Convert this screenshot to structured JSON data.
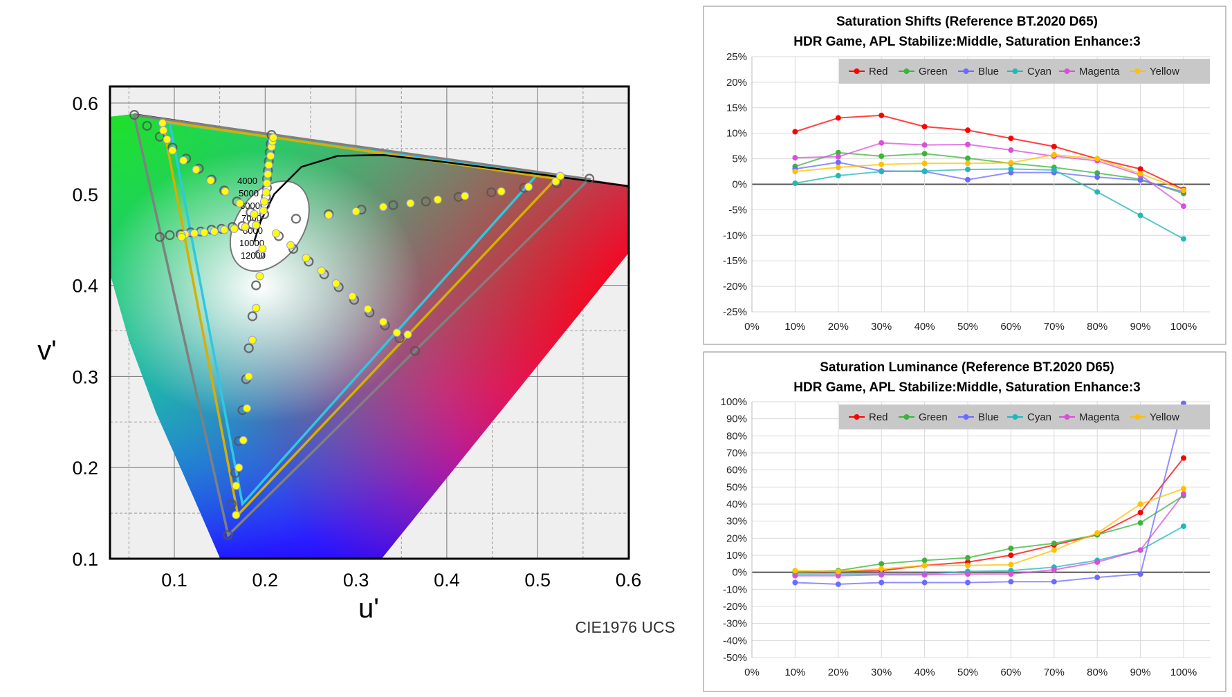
{
  "chart_data": [
    {
      "type": "scatter",
      "title": "",
      "xlabel": "u'",
      "ylabel": "v'",
      "caption": "CIE1976 UCS",
      "xlim": [
        0.03,
        0.6
      ],
      "ylim": [
        0.1,
        0.62
      ],
      "x_ticks": [
        "0.1",
        "0.2",
        "0.3",
        "0.4",
        "0.5",
        "0.6"
      ],
      "y_ticks": [
        "0.1",
        "0.2",
        "0.3",
        "0.4",
        "0.5",
        "0.6"
      ],
      "grid": true,
      "white_point": [
        0.1978,
        0.4683
      ],
      "cct_labels": [
        "4000",
        "5000",
        "6000",
        "7000",
        "8000",
        "10000",
        "12000"
      ],
      "gamut_triangles": [
        {
          "color": "#808080",
          "points": [
            [
              0.0556,
              0.5868
            ],
            [
              0.5566,
              0.5165
            ],
            [
              0.1593,
              0.1258
            ]
          ]
        },
        {
          "color": "#2ec8e0",
          "points": [
            [
              0.095,
              0.578
            ],
            [
              0.5,
              0.522
            ],
            [
              0.175,
              0.16
            ]
          ]
        },
        {
          "color": "#d4b000",
          "points": [
            [
              0.087,
              0.58
            ],
            [
              0.52,
              0.517
            ],
            [
              0.17,
              0.148
            ]
          ]
        }
      ],
      "series": [
        {
          "color": "#ff0000",
          "targets": [
            [
              0.234,
              0.473
            ],
            [
              0.27,
              0.478
            ],
            [
              0.306,
              0.483
            ],
            [
              0.341,
              0.488
            ],
            [
              0.377,
              0.492
            ],
            [
              0.413,
              0.497
            ],
            [
              0.449,
              0.502
            ],
            [
              0.485,
              0.507
            ],
            [
              0.521,
              0.512
            ],
            [
              0.557,
              0.517
            ]
          ],
          "measured": [
            [
              0.27,
              0.477
            ],
            [
              0.3,
              0.481
            ],
            [
              0.33,
              0.486
            ],
            [
              0.36,
              0.49
            ],
            [
              0.39,
              0.494
            ],
            [
              0.42,
              0.498
            ],
            [
              0.46,
              0.503
            ],
            [
              0.49,
              0.508
            ],
            [
              0.52,
              0.514
            ],
            [
              0.525,
              0.52
            ]
          ]
        },
        {
          "color": "#00c000",
          "targets": [
            [
              0.184,
              0.48
            ],
            [
              0.169,
              0.492
            ],
            [
              0.155,
              0.504
            ],
            [
              0.141,
              0.516
            ],
            [
              0.127,
              0.528
            ],
            [
              0.113,
              0.539
            ],
            [
              0.098,
              0.551
            ],
            [
              0.084,
              0.563
            ],
            [
              0.07,
              0.575
            ],
            [
              0.056,
              0.587
            ]
          ],
          "measured": [
            [
              0.188,
              0.478
            ],
            [
              0.172,
              0.49
            ],
            [
              0.156,
              0.503
            ],
            [
              0.14,
              0.515
            ],
            [
              0.124,
              0.527
            ],
            [
              0.11,
              0.537
            ],
            [
              0.098,
              0.548
            ],
            [
              0.092,
              0.56
            ],
            [
              0.088,
              0.57
            ],
            [
              0.087,
              0.578
            ]
          ]
        },
        {
          "color": "#0000ff",
          "targets": [
            [
              0.194,
              0.434
            ],
            [
              0.19,
              0.4
            ],
            [
              0.186,
              0.366
            ],
            [
              0.182,
              0.331
            ],
            [
              0.179,
              0.297
            ],
            [
              0.175,
              0.263
            ],
            [
              0.171,
              0.229
            ],
            [
              0.167,
              0.194
            ],
            [
              0.163,
              0.16
            ],
            [
              0.159,
              0.126
            ]
          ],
          "measured": [
            [
              0.197,
              0.44
            ],
            [
              0.194,
              0.41
            ],
            [
              0.19,
              0.375
            ],
            [
              0.186,
              0.34
            ],
            [
              0.182,
              0.3
            ],
            [
              0.18,
              0.265
            ],
            [
              0.176,
              0.23
            ],
            [
              0.171,
              0.2
            ],
            [
              0.168,
              0.18
            ],
            [
              0.168,
              0.148
            ]
          ]
        },
        {
          "color": "#00ffff",
          "targets": [
            [
              0.186,
              0.467
            ],
            [
              0.175,
              0.465
            ],
            [
              0.164,
              0.464
            ],
            [
              0.152,
              0.462
            ],
            [
              0.141,
              0.461
            ],
            [
              0.129,
              0.459
            ],
            [
              0.118,
              0.458
            ],
            [
              0.107,
              0.456
            ],
            [
              0.095,
              0.455
            ],
            [
              0.084,
              0.453
            ]
          ],
          "measured": [
            [
              0.19,
              0.466
            ],
            [
              0.178,
              0.464
            ],
            [
              0.166,
              0.462
            ],
            [
              0.155,
              0.461
            ],
            [
              0.144,
              0.459
            ],
            [
              0.133,
              0.458
            ],
            [
              0.122,
              0.457
            ],
            [
              0.112,
              0.456
            ],
            [
              0.108,
              0.455
            ],
            [
              0.108,
              0.453
            ]
          ]
        },
        {
          "color": "#ff00ff",
          "targets": [
            [
              0.215,
              0.454
            ],
            [
              0.231,
              0.44
            ],
            [
              0.248,
              0.426
            ],
            [
              0.265,
              0.412
            ],
            [
              0.281,
              0.398
            ],
            [
              0.298,
              0.384
            ],
            [
              0.315,
              0.37
            ],
            [
              0.332,
              0.356
            ],
            [
              0.348,
              0.342
            ],
            [
              0.365,
              0.328
            ]
          ],
          "measured": [
            [
              0.212,
              0.457
            ],
            [
              0.228,
              0.444
            ],
            [
              0.245,
              0.43
            ],
            [
              0.262,
              0.416
            ],
            [
              0.278,
              0.402
            ],
            [
              0.296,
              0.388
            ],
            [
              0.313,
              0.374
            ],
            [
              0.33,
              0.36
            ],
            [
              0.345,
              0.348
            ],
            [
              0.357,
              0.346
            ]
          ]
        },
        {
          "color": "#ffff00",
          "targets": [
            [
              0.199,
              0.478
            ],
            [
              0.2,
              0.488
            ],
            [
              0.201,
              0.497
            ],
            [
              0.202,
              0.507
            ],
            [
              0.202,
              0.517
            ],
            [
              0.203,
              0.526
            ],
            [
              0.204,
              0.536
            ],
            [
              0.205,
              0.546
            ],
            [
              0.206,
              0.555
            ],
            [
              0.207,
              0.565
            ]
          ],
          "measured": [
            [
              0.198,
              0.482
            ],
            [
              0.199,
              0.492
            ],
            [
              0.201,
              0.502
            ],
            [
              0.202,
              0.512
            ],
            [
              0.203,
              0.522
            ],
            [
              0.204,
              0.532
            ],
            [
              0.206,
              0.542
            ],
            [
              0.207,
              0.552
            ],
            [
              0.208,
              0.558
            ],
            [
              0.209,
              0.562
            ]
          ]
        }
      ]
    },
    {
      "type": "line",
      "title": "Saturation Shifts (Reference BT.2020 D65)",
      "subtitle": "HDR Game, APL Stabilize:Middle, Saturation Enhance:3",
      "categories": [
        "10%",
        "20%",
        "30%",
        "40%",
        "50%",
        "60%",
        "70%",
        "80%",
        "90%",
        "100%"
      ],
      "x_ticks": [
        "0%",
        "10%",
        "20%",
        "30%",
        "40%",
        "50%",
        "60%",
        "70%",
        "80%",
        "90%",
        "100%"
      ],
      "y_ticks": [
        "25%",
        "20%",
        "15%",
        "10%",
        "5%",
        "0%",
        "-5%",
        "-10%",
        "-15%",
        "-20%",
        "-25%"
      ],
      "ylim": [
        -25,
        25
      ],
      "grid": true,
      "legend": "top-right",
      "series": [
        {
          "name": "Red",
          "color": "#ff0000",
          "values": [
            10.3,
            13.0,
            13.5,
            11.3,
            10.6,
            9.0,
            7.4,
            5.0,
            3.0,
            -1.0
          ]
        },
        {
          "name": "Green",
          "color": "#3cb43c",
          "values": [
            3.5,
            6.2,
            5.5,
            6.0,
            5.1,
            4.1,
            3.3,
            2.2,
            1.0,
            -1.8
          ]
        },
        {
          "name": "Blue",
          "color": "#6b6bff",
          "values": [
            3.0,
            4.3,
            2.6,
            2.5,
            0.9,
            2.3,
            2.3,
            1.4,
            0.8,
            -1.5
          ]
        },
        {
          "name": "Cyan",
          "color": "#22b8b8",
          "values": [
            0.2,
            1.7,
            2.5,
            2.6,
            2.9,
            3.0,
            2.8,
            -1.5,
            -6.1,
            -10.7
          ]
        },
        {
          "name": "Magenta",
          "color": "#d94fd9",
          "values": [
            5.2,
            5.4,
            8.1,
            7.7,
            7.8,
            6.7,
            5.5,
            4.6,
            1.8,
            -4.3
          ]
        },
        {
          "name": "Yellow",
          "color": "#ffc000",
          "values": [
            2.5,
            3.3,
            3.9,
            4.1,
            4.1,
            4.2,
            5.8,
            5.0,
            2.1,
            -1.2
          ]
        }
      ]
    },
    {
      "type": "line",
      "title": "Saturation Luminance (Reference BT.2020 D65)",
      "subtitle": "HDR Game, APL Stabilize:Middle, Saturation Enhance:3",
      "categories": [
        "10%",
        "20%",
        "30%",
        "40%",
        "50%",
        "60%",
        "70%",
        "80%",
        "90%",
        "100%"
      ],
      "x_ticks": [
        "0%",
        "10%",
        "20%",
        "30%",
        "40%",
        "50%",
        "60%",
        "70%",
        "80%",
        "90%",
        "100%"
      ],
      "y_ticks": [
        "100%",
        "90%",
        "80%",
        "70%",
        "60%",
        "50%",
        "40%",
        "30%",
        "20%",
        "10%",
        "0%",
        "-10%",
        "-20%",
        "-30%",
        "-40%",
        "-50%"
      ],
      "ylim": [
        -50,
        100
      ],
      "grid": true,
      "legend": "top-right",
      "series": [
        {
          "name": "Red",
          "color": "#ff0000",
          "values": [
            0,
            0.5,
            1,
            4,
            6,
            10,
            16,
            22,
            35,
            67
          ]
        },
        {
          "name": "Green",
          "color": "#3cb43c",
          "values": [
            0,
            1,
            5,
            7,
            8.5,
            14,
            17,
            22,
            29,
            45
          ]
        },
        {
          "name": "Blue",
          "color": "#6b6bff",
          "values": [
            -6,
            -7,
            -6,
            -6,
            -6,
            -5.5,
            -5.5,
            -3,
            -1,
            99
          ]
        },
        {
          "name": "Cyan",
          "color": "#22b8b8",
          "values": [
            -1,
            -1,
            -1,
            -1,
            0.5,
            1,
            3,
            7,
            13,
            27
          ]
        },
        {
          "name": "Magenta",
          "color": "#d94fd9",
          "values": [
            -2,
            -2,
            -1.5,
            -1.5,
            -1,
            -1,
            1.5,
            6,
            13,
            46
          ]
        },
        {
          "name": "Yellow",
          "color": "#ffc000",
          "values": [
            1,
            0.5,
            2,
            4,
            4,
            4.5,
            13,
            23,
            40,
            49
          ]
        }
      ]
    }
  ]
}
